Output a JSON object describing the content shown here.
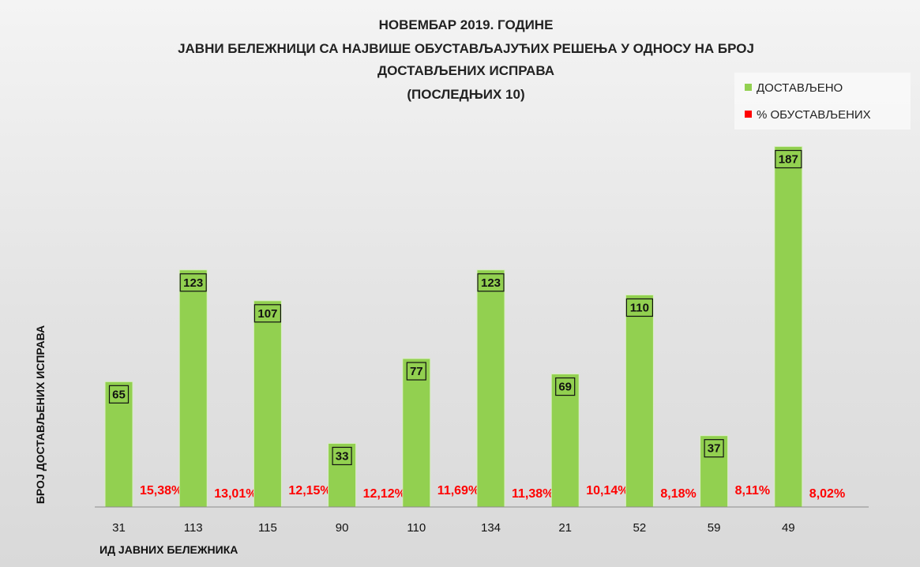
{
  "chart_data": {
    "type": "bar",
    "title_lines": [
      "НОВЕМБАР 2019. ГОДИНЕ",
      "ЈАВНИ БЕЛЕЖНИЦИ СА НАЈВИШЕ ОБУСТАВЉАЈУЋИХ РЕШЕЊА У ОДНОСУ НА БРОЈ",
      "ДОСТАВЉЕНИХ ИСПРАВА",
      "(ПОСЛЕДЊИХ 10)"
    ],
    "xlabel": "ИД ЈАВНИХ БЕЛЕЖНИКА",
    "ylabel": "БРОЈ ДОСТАВЉЕНИХ ИСПРАВА",
    "categories": [
      "31",
      "113",
      "115",
      "90",
      "110",
      "134",
      "21",
      "52",
      "59",
      "49"
    ],
    "ylim": [
      0,
      195
    ],
    "grid": false,
    "legend_position": "top-right",
    "series": [
      {
        "name": "ДОСТАВЉЕНО",
        "color": "#92d050",
        "values": [
          65,
          123,
          107,
          33,
          77,
          123,
          69,
          110,
          37,
          187
        ],
        "labels": [
          "65",
          "123",
          "107",
          "33",
          "77",
          "123",
          "69",
          "110",
          "37",
          "187"
        ]
      },
      {
        "name": "% ОБУСТАВЉЕНИХ",
        "color": "#ff0000",
        "values": [
          15.38,
          13.01,
          12.15,
          12.12,
          11.69,
          11.38,
          10.14,
          8.18,
          8.11,
          8.02
        ],
        "labels": [
          "15,38%",
          "13,01%",
          "12,15%",
          "12,12%",
          "11,69%",
          "11,38%",
          "10,14%",
          "8,18%",
          "8,11%",
          "8,02%"
        ]
      }
    ]
  }
}
